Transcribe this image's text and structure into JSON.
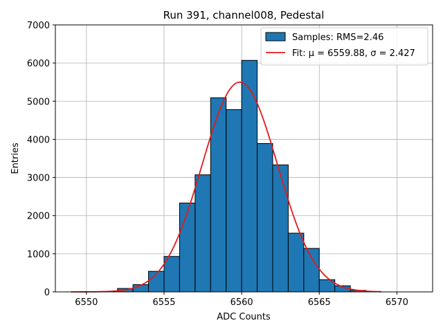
{
  "chart_data": {
    "type": "bar",
    "title": "Run 391, channel008, Pedestal",
    "xlabel": "ADC Counts",
    "ylabel": "Entries",
    "xlim": [
      6548,
      6572.3
    ],
    "ylim": [
      0,
      7000
    ],
    "xticks": [
      6550,
      6555,
      6560,
      6565,
      6570
    ],
    "yticks": [
      0,
      1000,
      2000,
      3000,
      4000,
      5000,
      6000,
      7000
    ],
    "grid": true,
    "legend_position": "top-right",
    "bin_width": 1,
    "bins": [
      {
        "x0": 6552,
        "value": 90
      },
      {
        "x0": 6553,
        "value": 190
      },
      {
        "x0": 6554,
        "value": 540
      },
      {
        "x0": 6555,
        "value": 930
      },
      {
        "x0": 6556,
        "value": 2330
      },
      {
        "x0": 6557,
        "value": 3070
      },
      {
        "x0": 6558,
        "value": 5090
      },
      {
        "x0": 6559,
        "value": 4780
      },
      {
        "x0": 6560,
        "value": 6070
      },
      {
        "x0": 6561,
        "value": 3890
      },
      {
        "x0": 6562,
        "value": 3330
      },
      {
        "x0": 6563,
        "value": 1540
      },
      {
        "x0": 6564,
        "value": 1140
      },
      {
        "x0": 6565,
        "value": 320
      },
      {
        "x0": 6566,
        "value": 160
      },
      {
        "x0": 6567,
        "value": 40
      }
    ],
    "fit": {
      "mu": 6559.88,
      "sigma": 2.427,
      "amplitude": 5500,
      "x_range": [
        6549,
        6569
      ]
    },
    "series": [
      {
        "name": "Samples: RMS=2.46",
        "type": "histogram",
        "color": "#1f77b4"
      },
      {
        "name": "Fit: μ = 6559.88, σ = 2.427",
        "type": "line",
        "color": "#e31a1c"
      }
    ]
  }
}
